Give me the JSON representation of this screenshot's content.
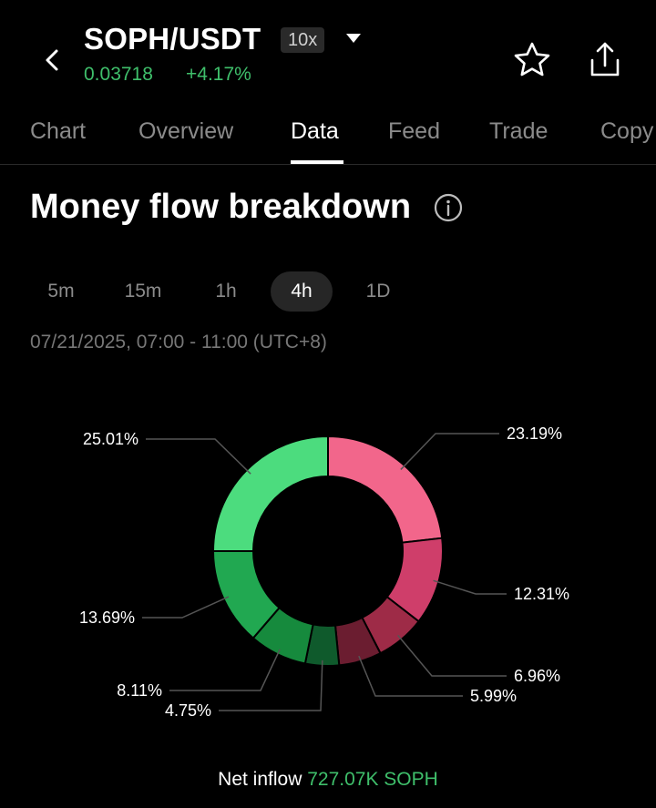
{
  "header": {
    "pair": "SOPH/USDT",
    "leverage": "10x",
    "price": "0.03718",
    "change": "+4.17%"
  },
  "tabs": [
    "Chart",
    "Overview",
    "Data",
    "Feed",
    "Trade",
    "Copy"
  ],
  "active_tab": "Data",
  "section": {
    "title": "Money flow breakdown"
  },
  "ranges": [
    "5m",
    "15m",
    "1h",
    "4h",
    "1D"
  ],
  "active_range": "4h",
  "date_range": "07/21/2025, 07:00 - 11:00 (UTC+8)",
  "net_flow": {
    "label": "Net inflow",
    "value": "727.07K SOPH"
  },
  "colors": {
    "positive": "#3fbf6b",
    "outflow": [
      "#f2668b",
      "#cf3e6a",
      "#9e2b47",
      "#6b1d30"
    ],
    "inflow": [
      "#0f5a2c",
      "#168a3d",
      "#21a851",
      "#4cdc7e"
    ]
  },
  "chart_data": {
    "type": "pie",
    "slices": [
      {
        "group": "outflow",
        "value": 23.19,
        "label": "23.19%"
      },
      {
        "group": "outflow",
        "value": 12.31,
        "label": "12.31%"
      },
      {
        "group": "outflow",
        "value": 6.96,
        "label": "6.96%"
      },
      {
        "group": "outflow",
        "value": 5.99,
        "label": "5.99%"
      },
      {
        "group": "inflow",
        "value": 4.75,
        "label": "4.75%"
      },
      {
        "group": "inflow",
        "value": 8.11,
        "label": "8.11%"
      },
      {
        "group": "inflow",
        "value": 13.69,
        "label": "13.69%"
      },
      {
        "group": "inflow",
        "value": 25.01,
        "label": "25.01%"
      }
    ]
  }
}
